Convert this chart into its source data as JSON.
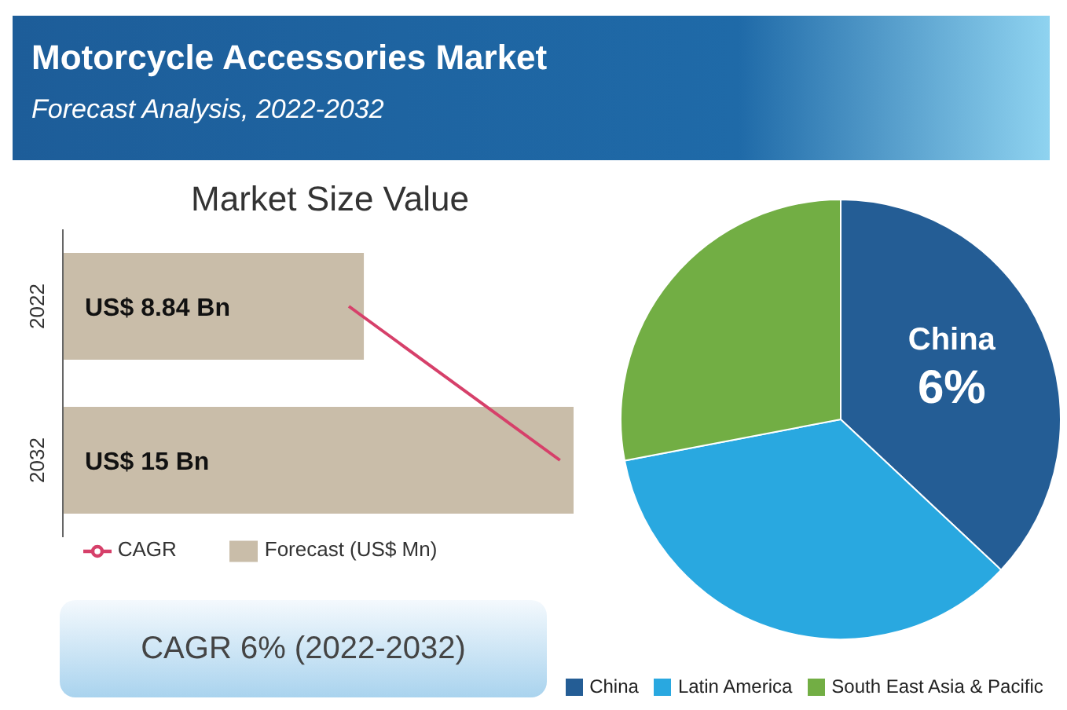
{
  "chart_data": [
    {
      "type": "other",
      "title": "Motorcycle Accessories Market",
      "subtitle": "Forecast Analysis, 2022-2032",
      "annotations": [
        "CAGR 6% (2022-2032)"
      ]
    },
    {
      "type": "bar",
      "orientation": "horizontal",
      "title": "Market Size Value",
      "categories": [
        "2022",
        "2032"
      ],
      "xlim": [
        0,
        15
      ],
      "tick_labels": "y",
      "legend": "bottom",
      "series": [
        {
          "name": "Forecast (US$ Mn)",
          "type": "bar",
          "color": "#c9bda9",
          "values": [
            8.84,
            15
          ],
          "value_labels": [
            "US$ 8.84 Bn",
            "US$ 15 Bn"
          ]
        },
        {
          "name": "CAGR",
          "type": "line",
          "color": "#d6406a",
          "values": [
            8.4,
            14.6
          ]
        }
      ]
    },
    {
      "type": "pie",
      "categories": [
        "China",
        "Latin America",
        "South East Asia & Pacific"
      ],
      "values": [
        37,
        35,
        28
      ],
      "colors": [
        "#245d95",
        "#29a8e0",
        "#72ae44"
      ],
      "legend": "bottom",
      "annotations": [
        "China",
        "6%"
      ]
    }
  ]
}
